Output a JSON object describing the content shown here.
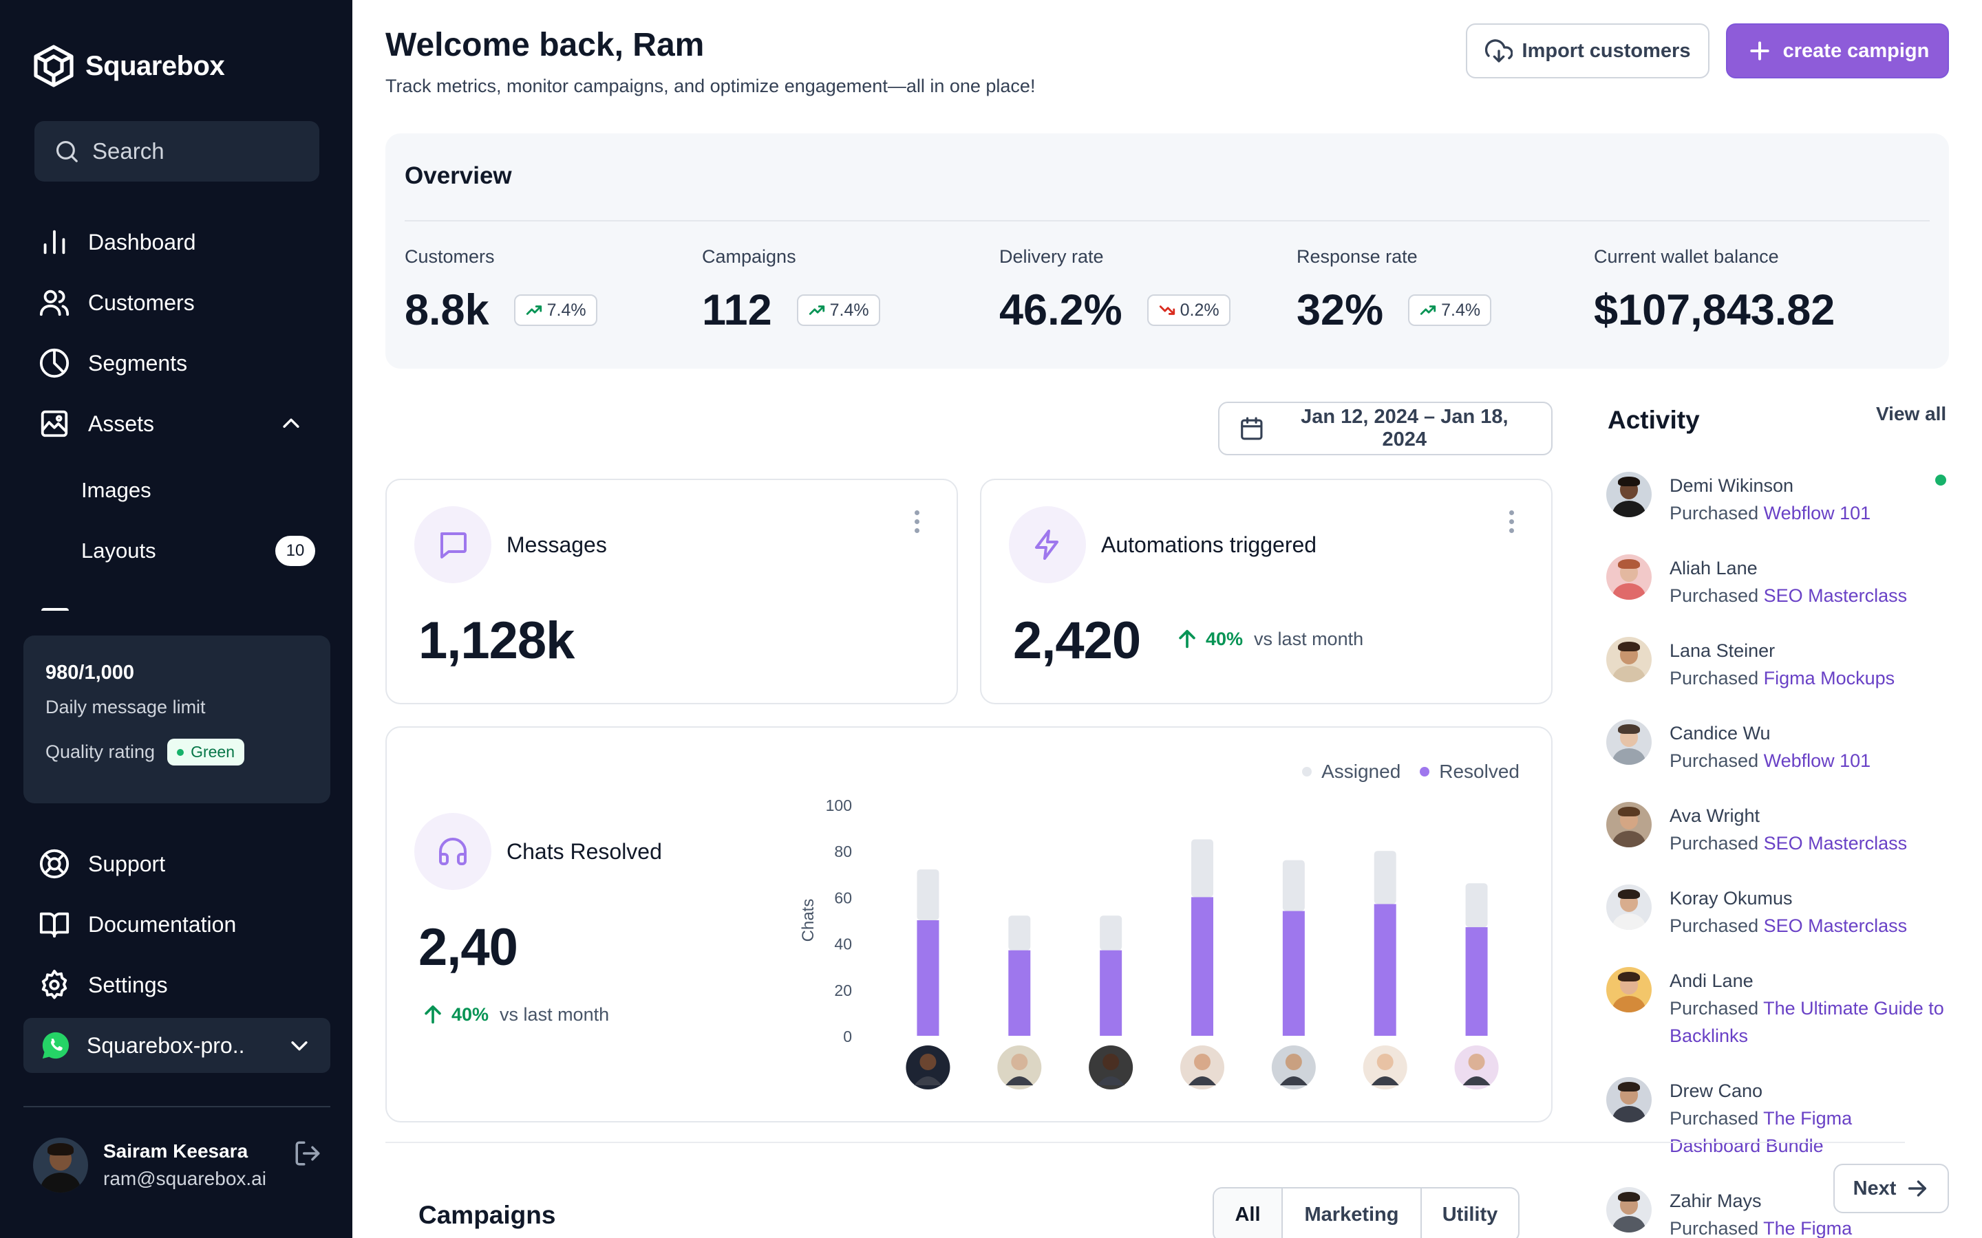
{
  "app": {
    "name": "Squarebox"
  },
  "search": {
    "placeholder": "Search"
  },
  "nav": {
    "dashboard": "Dashboard",
    "customers": "Customers",
    "segments": "Segments",
    "assets": "Assets",
    "assets_sub": [
      {
        "label": "Images"
      },
      {
        "label": "Layouts",
        "badge": "10"
      }
    ]
  },
  "limit": {
    "value": "980/1,000",
    "label": "Daily message limit",
    "quality_label": "Quality rating",
    "quality_value": "Green"
  },
  "bottom_nav": {
    "support": "Support",
    "documentation": "Documentation",
    "settings": "Settings"
  },
  "workspace": {
    "name": "Squarebox-pro.."
  },
  "user": {
    "name": "Sairam Keesara",
    "email": "ram@squarebox.ai"
  },
  "header": {
    "title": "Welcome back, Ram",
    "subtitle": "Track metrics, monitor campaigns, and optimize engagement—all in one place!",
    "import_label": "Import customers",
    "create_label": "create campign"
  },
  "overview": {
    "title": "Overview",
    "metrics": [
      {
        "label": "Customers",
        "value": "8.8k",
        "trend": "7.4%",
        "direction": "up"
      },
      {
        "label": "Campaigns",
        "value": "112",
        "trend": "7.4%",
        "direction": "up"
      },
      {
        "label": "Delivery rate",
        "value": "46.2%",
        "trend": "0.2%",
        "direction": "down"
      },
      {
        "label": "Response rate",
        "value": "32%",
        "trend": "7.4%",
        "direction": "up"
      },
      {
        "label": "Current wallet balance",
        "value": "$107,843.82"
      }
    ]
  },
  "date_range": "Jan 12, 2024 – Jan 18, 2024",
  "cards": {
    "messages": {
      "title": "Messages",
      "value": "1,128k"
    },
    "automations": {
      "title": "Automations triggered",
      "value": "2,420",
      "delta": "40%",
      "delta_text": "vs last month"
    },
    "chats": {
      "title": "Chats Resolved",
      "value": "2,40",
      "delta": "40%",
      "delta_text": "vs last month"
    }
  },
  "chart_data": {
    "type": "bar",
    "stacked": true,
    "ylabel": "Chats",
    "ylim": [
      0,
      100
    ],
    "yticks": [
      0,
      20,
      40,
      60,
      80,
      100
    ],
    "categories": [
      "agent-1",
      "agent-2",
      "agent-3",
      "agent-4",
      "agent-5",
      "agent-6",
      "agent-7"
    ],
    "series": [
      {
        "name": "Resolved",
        "values": [
          50,
          37,
          37,
          60,
          54,
          57,
          47
        ],
        "color": "#9e77ed"
      },
      {
        "name": "Assigned",
        "values": [
          22,
          15,
          15,
          25,
          22,
          23,
          19
        ],
        "color": "#e4e7ec"
      }
    ],
    "legend": [
      "Assigned",
      "Resolved"
    ],
    "legend_position": "top-right",
    "grid": false
  },
  "activity": {
    "title": "Activity",
    "view_all": "View all",
    "items": [
      {
        "name": "Demi Wikinson",
        "action": "Purchased",
        "product": "Webflow 101"
      },
      {
        "name": "Aliah Lane",
        "action": "Purchased",
        "product": "SEO Masterclass"
      },
      {
        "name": "Lana Steiner",
        "action": "Purchased",
        "product": "Figma Mockups"
      },
      {
        "name": "Candice Wu",
        "action": "Purchased",
        "product": "Webflow 101"
      },
      {
        "name": "Ava Wright",
        "action": "Purchased",
        "product": "SEO Masterclass"
      },
      {
        "name": "Koray Okumus",
        "action": "Purchased",
        "product": "SEO Masterclass"
      },
      {
        "name": "Andi Lane",
        "action": "Purchased",
        "product": "The Ultimate Guide to Backlinks"
      },
      {
        "name": "Drew Cano",
        "action": "Purchased",
        "product": "The Figma Dashboard Bundle"
      },
      {
        "name": "Zahir Mays",
        "action": "Purchased",
        "product": "The Figma"
      }
    ],
    "next_label": "Next"
  },
  "campaigns": {
    "title": "Campaigns",
    "tabs": [
      "All",
      "Marketing",
      "Utility"
    ],
    "active_tab": "All"
  },
  "colors": {
    "accent": "#8e5cd9",
    "sidebar": "#0c1222",
    "success": "#079455",
    "danger": "#d92d20"
  }
}
